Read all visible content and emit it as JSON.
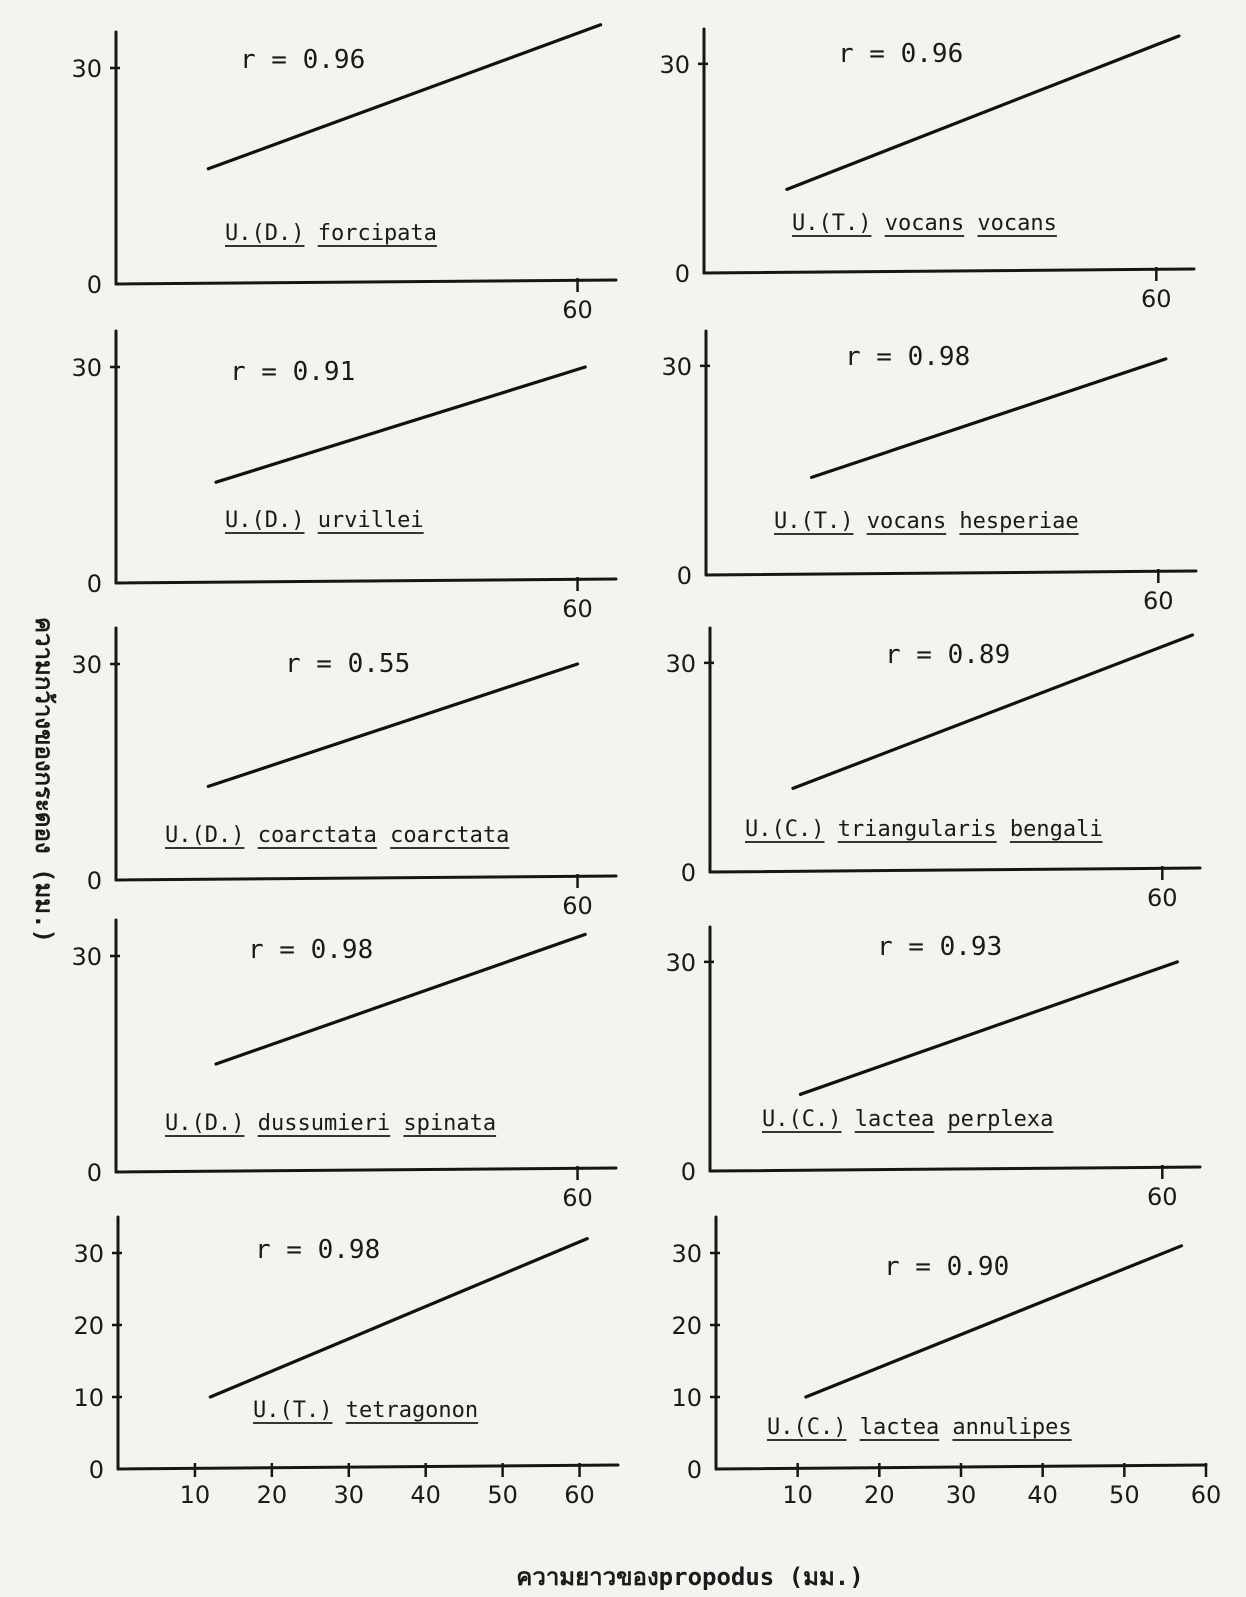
{
  "figure": {
    "ylabel": "ความกว้างของกระดอง (มม.)",
    "xlabel": "ความยาวของpropodus  (มม.)"
  },
  "chart_data": [
    {
      "type": "line",
      "title": "U.(D.) forcipata",
      "species_parts": [
        [
          "U",
          "."
        ],
        [
          "(",
          ""
        ],
        [
          "D",
          "."
        ],
        [
          ")",
          ""
        ],
        [
          "forcipata",
          ""
        ]
      ],
      "r_label": "r = 0.96",
      "ylim": [
        0,
        35
      ],
      "xlim": [
        0,
        65
      ],
      "x_ticks": [
        60
      ],
      "y_ticks": [
        0,
        30
      ],
      "x": [
        12,
        63
      ],
      "y": [
        16,
        36
      ]
    },
    {
      "type": "line",
      "title": "U.(T.) vocans vocans",
      "r_label": "r = 0.96",
      "ylim": [
        0,
        35
      ],
      "xlim": [
        0,
        65
      ],
      "x_ticks": [
        60
      ],
      "y_ticks": [
        0,
        30
      ],
      "x": [
        11,
        63
      ],
      "y": [
        12,
        34
      ]
    },
    {
      "type": "line",
      "title": "U.(D.) urvillei",
      "r_label": "r = 0.91",
      "ylim": [
        0,
        35
      ],
      "xlim": [
        0,
        65
      ],
      "x_ticks": [
        60
      ],
      "y_ticks": [
        0,
        30
      ],
      "x": [
        13,
        61
      ],
      "y": [
        14,
        30
      ]
    },
    {
      "type": "line",
      "title": "U.(T.) vocans hesperiae",
      "r_label": "r = 0.98",
      "ylim": [
        0,
        35
      ],
      "xlim": [
        0,
        65
      ],
      "x_ticks": [
        60
      ],
      "y_ticks": [
        0,
        30
      ],
      "x": [
        14,
        61
      ],
      "y": [
        14,
        31
      ]
    },
    {
      "type": "line",
      "title": "U.(D.) coarctata coarctata",
      "r_label": "r = 0.55",
      "ylim": [
        0,
        35
      ],
      "xlim": [
        0,
        65
      ],
      "x_ticks": [
        60
      ],
      "y_ticks": [
        0,
        30
      ],
      "x": [
        12,
        60
      ],
      "y": [
        13,
        30
      ]
    },
    {
      "type": "line",
      "title": "U.(C.) triangularis bengali",
      "r_label": "r = 0.89",
      "ylim": [
        0,
        35
      ],
      "xlim": [
        0,
        65
      ],
      "x_ticks": [
        60
      ],
      "y_ticks": [
        0,
        30
      ],
      "x": [
        11,
        64
      ],
      "y": [
        12,
        34
      ]
    },
    {
      "type": "line",
      "title": "U.(D.) dussumieri spinata",
      "r_label": "r = 0.98",
      "ylim": [
        0,
        35
      ],
      "xlim": [
        0,
        65
      ],
      "x_ticks": [
        60
      ],
      "y_ticks": [
        0,
        30
      ],
      "x": [
        13,
        61
      ],
      "y": [
        15,
        33
      ]
    },
    {
      "type": "line",
      "title": "U.(C.) lactea perplexa",
      "r_label": "r = 0.93",
      "ylim": [
        0,
        35
      ],
      "xlim": [
        0,
        65
      ],
      "x_ticks": [
        60
      ],
      "y_ticks": [
        0,
        30
      ],
      "x": [
        12,
        62
      ],
      "y": [
        11,
        30
      ]
    },
    {
      "type": "line",
      "title": "U.(T.) tetragonon",
      "r_label": "r = 0.98",
      "ylim": [
        0,
        35
      ],
      "xlim": [
        0,
        65
      ],
      "x_ticks": [
        10,
        20,
        30,
        40,
        50,
        60
      ],
      "y_ticks": [
        0,
        10,
        20,
        30
      ],
      "x": [
        12,
        61
      ],
      "y": [
        10,
        32
      ]
    },
    {
      "type": "line",
      "title": "U.(C.) lactea annulipes",
      "r_label": "r = 0.90",
      "ylim": [
        0,
        35
      ],
      "xlim": [
        0,
        60
      ],
      "x_ticks": [
        10,
        20,
        30,
        40,
        50,
        60
      ],
      "y_ticks": [
        0,
        10,
        20,
        30
      ],
      "x": [
        11,
        57
      ],
      "y": [
        10,
        31
      ]
    }
  ]
}
